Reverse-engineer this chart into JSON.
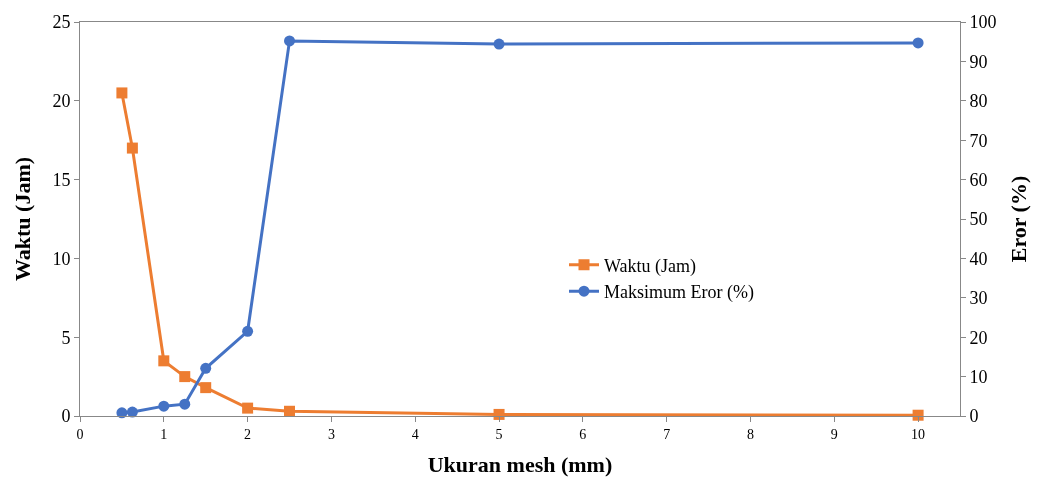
{
  "chart_data": {
    "type": "line",
    "xlabel": "Ukuran mesh (mm)",
    "ylabel": "Waktu (Jam)",
    "y2label": "Eror (%)",
    "x": [
      0.5,
      0.625,
      1,
      1.25,
      1.5,
      2,
      2.5,
      5,
      10
    ],
    "series": [
      {
        "name": "Waktu (Jam)",
        "color": "#ed7d31",
        "marker": "square",
        "values": [
          20.5,
          17.0,
          3.5,
          2.5,
          1.8,
          0.5,
          0.3,
          0.1,
          0.05
        ]
      },
      {
        "name": "Maksimum Eror (%)",
        "color": "#4472c4",
        "marker": "circle",
        "axis": "y2",
        "values": [
          0.8,
          1,
          2.5,
          3,
          12.1,
          21.5,
          95.2,
          94.4,
          94.7
        ]
      }
    ],
    "xlim": [
      0,
      10.5
    ],
    "xticks": [
      0,
      1,
      2,
      3,
      4,
      5,
      6,
      7,
      8,
      9,
      10
    ],
    "ylim": [
      0,
      25
    ],
    "yticks": [
      0,
      5,
      10,
      15,
      20,
      25
    ],
    "y2lim": [
      0,
      100
    ],
    "y2ticks": [
      0,
      10,
      20,
      30,
      40,
      50,
      60,
      70,
      80,
      90,
      100
    ],
    "legend": "right",
    "line_style": "solid"
  }
}
